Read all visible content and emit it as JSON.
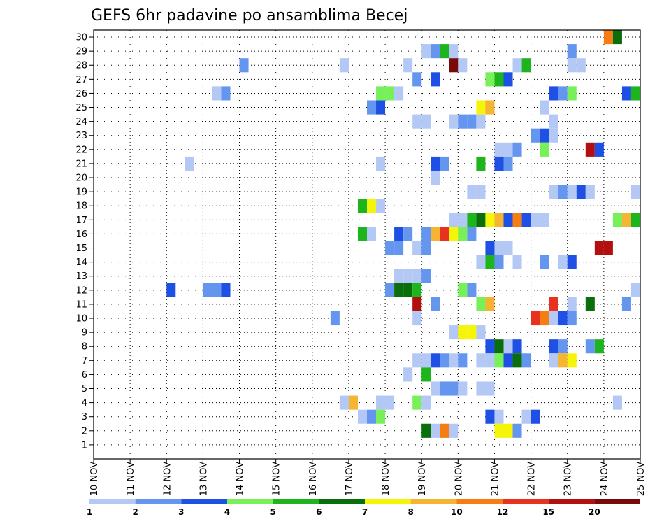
{
  "chart_data": {
    "type": "heatmap",
    "title": "GEFS 6hr padavine po ansamblima Becej",
    "x_ticks": [
      "10 NOV",
      "11 NOV",
      "12 NOV",
      "13 NOV",
      "14 NOV",
      "15 NOV",
      "16 NOV",
      "17 NOV",
      "18 NOV",
      "19 NOV",
      "20 NOV",
      "21 NOV",
      "22 NOV",
      "23 NOV",
      "24 NOV",
      "25 NOV"
    ],
    "y_ticks": [
      1,
      2,
      3,
      4,
      5,
      6,
      7,
      8,
      9,
      10,
      11,
      12,
      13,
      14,
      15,
      16,
      17,
      18,
      19,
      20,
      21,
      22,
      23,
      24,
      25,
      26,
      27,
      28,
      29,
      30
    ],
    "xlim": [
      "10 NOV 00Z",
      "25 NOV 00Z"
    ],
    "ylim": [
      0.5,
      30.5
    ],
    "grid": true,
    "legend": {
      "position": "bottom",
      "labels": [
        "1",
        "2",
        "3",
        "4",
        "5",
        "6",
        "7",
        "8",
        "10",
        "12",
        "15",
        "20"
      ],
      "colors": [
        "#b4c8f5",
        "#6496f0",
        "#1e50e6",
        "#78f05a",
        "#1eb41e",
        "#0a6e0a",
        "#f5f50a",
        "#f5b432",
        "#f57d14",
        "#e6321e",
        "#b40f0f",
        "#780a0a"
      ]
    },
    "cell_value_unit": "mm per 6h (color class index 0-11)",
    "cells": [
      {
        "member": 30,
        "start": "24 NOV 00Z",
        "classes": [
          8,
          5
        ]
      },
      {
        "member": 29,
        "start": "19 NOV 00Z",
        "classes": [
          0,
          1,
          4,
          0
        ]
      },
      {
        "member": 29,
        "start": "23 NOV 00Z",
        "classes": [
          1
        ]
      },
      {
        "member": 28,
        "start": "14 NOV 00Z",
        "classes": [
          1
        ]
      },
      {
        "member": 28,
        "start": "16 NOV 18Z",
        "classes": [
          0
        ]
      },
      {
        "member": 28,
        "start": "18 NOV 12Z",
        "classes": [
          0
        ]
      },
      {
        "member": 28,
        "start": "19 NOV 18Z",
        "classes": [
          11,
          0
        ]
      },
      {
        "member": 28,
        "start": "21 NOV 12Z",
        "classes": [
          0,
          4
        ]
      },
      {
        "member": 28,
        "start": "23 NOV 00Z",
        "classes": [
          0,
          0
        ]
      },
      {
        "member": 27,
        "start": "18 NOV 18Z",
        "classes": [
          1
        ]
      },
      {
        "member": 27,
        "start": "19 NOV 06Z",
        "classes": [
          2
        ]
      },
      {
        "member": 27,
        "start": "20 NOV 18Z",
        "classes": [
          3,
          4,
          2
        ]
      },
      {
        "member": 26,
        "start": "13 NOV 06Z",
        "classes": [
          0,
          1
        ]
      },
      {
        "member": 26,
        "start": "17 NOV 18Z",
        "classes": [
          3,
          3,
          0
        ]
      },
      {
        "member": 26,
        "start": "22 NOV 12Z",
        "classes": [
          2,
          1,
          3
        ]
      },
      {
        "member": 26,
        "start": "24 NOV 12Z",
        "classes": [
          2,
          4
        ]
      },
      {
        "member": 25,
        "start": "17 NOV 12Z",
        "classes": [
          1,
          2
        ]
      },
      {
        "member": 25,
        "start": "20 NOV 12Z",
        "classes": [
          6,
          7
        ]
      },
      {
        "member": 25,
        "start": "22 NOV 06Z",
        "classes": [
          0
        ]
      },
      {
        "member": 24,
        "start": "18 NOV 18Z",
        "classes": [
          0,
          0
        ]
      },
      {
        "member": 24,
        "start": "19 NOV 18Z",
        "classes": [
          0,
          1,
          1,
          0
        ]
      },
      {
        "member": 24,
        "start": "22 NOV 12Z",
        "classes": [
          0
        ]
      },
      {
        "member": 23,
        "start": "22 NOV 00Z",
        "classes": [
          1,
          2
        ]
      },
      {
        "member": 23,
        "start": "22 NOV 12Z",
        "classes": [
          0
        ]
      },
      {
        "member": 22,
        "start": "21 NOV 00Z",
        "classes": [
          0,
          0,
          1
        ]
      },
      {
        "member": 22,
        "start": "22 NOV 06Z",
        "classes": [
          3
        ]
      },
      {
        "member": 22,
        "start": "23 NOV 12Z",
        "classes": [
          10,
          2
        ]
      },
      {
        "member": 21,
        "start": "12 NOV 12Z",
        "classes": [
          0
        ]
      },
      {
        "member": 21,
        "start": "17 NOV 18Z",
        "classes": [
          0
        ]
      },
      {
        "member": 21,
        "start": "19 NOV 06Z",
        "classes": [
          2,
          1
        ]
      },
      {
        "member": 21,
        "start": "20 NOV 12Z",
        "classes": [
          4
        ]
      },
      {
        "member": 21,
        "start": "21 NOV 00Z",
        "classes": [
          2,
          1
        ]
      },
      {
        "member": 20,
        "start": "19 NOV 06Z",
        "classes": [
          0
        ]
      },
      {
        "member": 19,
        "start": "20 NOV 06Z",
        "classes": [
          0,
          0
        ]
      },
      {
        "member": 19,
        "start": "22 NOV 12Z",
        "classes": [
          0,
          1,
          0,
          2,
          0
        ]
      },
      {
        "member": 19,
        "start": "24 NOV 18Z",
        "classes": [
          0
        ]
      },
      {
        "member": 18,
        "start": "17 NOV 06Z",
        "classes": [
          4,
          6,
          0
        ]
      },
      {
        "member": 17,
        "start": "19 NOV 18Z",
        "classes": [
          0,
          0,
          4,
          5,
          6,
          7,
          2,
          8,
          2,
          0,
          0
        ]
      },
      {
        "member": 17,
        "start": "24 NOV 06Z",
        "classes": [
          3,
          7,
          4
        ]
      },
      {
        "member": 16,
        "start": "17 NOV 06Z",
        "classes": [
          4,
          0
        ]
      },
      {
        "member": 16,
        "start": "18 NOV 06Z",
        "classes": [
          2,
          1
        ]
      },
      {
        "member": 16,
        "start": "19 NOV 00Z",
        "classes": [
          1,
          7,
          9,
          6,
          3,
          1
        ]
      },
      {
        "member": 15,
        "start": "18 NOV 00Z",
        "classes": [
          1,
          1
        ]
      },
      {
        "member": 15,
        "start": "18 NOV 18Z",
        "classes": [
          0,
          1
        ]
      },
      {
        "member": 15,
        "start": "20 NOV 18Z",
        "classes": [
          2,
          0,
          0
        ]
      },
      {
        "member": 15,
        "start": "23 NOV 18Z",
        "classes": [
          10,
          10
        ]
      },
      {
        "member": 14,
        "start": "20 NOV 12Z",
        "classes": [
          0,
          4,
          1
        ]
      },
      {
        "member": 14,
        "start": "21 NOV 12Z",
        "classes": [
          0
        ]
      },
      {
        "member": 14,
        "start": "22 NOV 06Z",
        "classes": [
          1
        ]
      },
      {
        "member": 14,
        "start": "22 NOV 18Z",
        "classes": [
          0,
          2
        ]
      },
      {
        "member": 13,
        "start": "18 NOV 06Z",
        "classes": [
          0,
          0,
          0,
          1
        ]
      },
      {
        "member": 12,
        "start": "12 NOV 00Z",
        "classes": [
          2
        ]
      },
      {
        "member": 12,
        "start": "13 NOV 00Z",
        "classes": [
          1,
          1,
          2
        ]
      },
      {
        "member": 12,
        "start": "18 NOV 00Z",
        "classes": [
          1,
          5,
          5,
          4
        ]
      },
      {
        "member": 12,
        "start": "20 NOV 00Z",
        "classes": [
          3,
          1
        ]
      },
      {
        "member": 12,
        "start": "24 NOV 18Z",
        "classes": [
          0
        ]
      },
      {
        "member": 11,
        "start": "18 NOV 18Z",
        "classes": [
          10
        ]
      },
      {
        "member": 11,
        "start": "19 NOV 06Z",
        "classes": [
          1
        ]
      },
      {
        "member": 11,
        "start": "20 NOV 12Z",
        "classes": [
          3,
          7
        ]
      },
      {
        "member": 11,
        "start": "22 NOV 12Z",
        "classes": [
          9
        ]
      },
      {
        "member": 11,
        "start": "23 NOV 00Z",
        "classes": [
          0
        ]
      },
      {
        "member": 11,
        "start": "23 NOV 12Z",
        "classes": [
          5
        ]
      },
      {
        "member": 11,
        "start": "24 NOV 12Z",
        "classes": [
          1
        ]
      },
      {
        "member": 10,
        "start": "16 NOV 12Z",
        "classes": [
          1
        ]
      },
      {
        "member": 10,
        "start": "18 NOV 18Z",
        "classes": [
          0
        ]
      },
      {
        "member": 10,
        "start": "22 NOV 00Z",
        "classes": [
          9,
          8,
          0,
          2,
          1
        ]
      },
      {
        "member": 9,
        "start": "19 NOV 18Z",
        "classes": [
          0,
          6,
          6,
          0
        ]
      },
      {
        "member": 8,
        "start": "20 NOV 18Z",
        "classes": [
          2,
          5,
          0,
          2
        ]
      },
      {
        "member": 8,
        "start": "22 NOV 12Z",
        "classes": [
          2,
          1
        ]
      },
      {
        "member": 8,
        "start": "23 NOV 12Z",
        "classes": [
          1,
          4
        ]
      },
      {
        "member": 7,
        "start": "18 NOV 18Z",
        "classes": [
          0,
          0,
          2,
          1,
          0,
          1
        ]
      },
      {
        "member": 7,
        "start": "20 NOV 12Z",
        "classes": [
          0,
          0,
          3,
          2,
          5,
          1
        ]
      },
      {
        "member": 7,
        "start": "22 NOV 12Z",
        "classes": [
          0,
          7,
          6
        ]
      },
      {
        "member": 6,
        "start": "18 NOV 12Z",
        "classes": [
          0
        ]
      },
      {
        "member": 6,
        "start": "19 NOV 00Z",
        "classes": [
          4
        ]
      },
      {
        "member": 5,
        "start": "19 NOV 06Z",
        "classes": [
          0,
          1,
          1,
          0
        ]
      },
      {
        "member": 5,
        "start": "20 NOV 12Z",
        "classes": [
          0,
          0
        ]
      },
      {
        "member": 4,
        "start": "16 NOV 18Z",
        "classes": [
          0,
          7
        ]
      },
      {
        "member": 4,
        "start": "17 NOV 18Z",
        "classes": [
          0,
          0
        ]
      },
      {
        "member": 4,
        "start": "18 NOV 18Z",
        "classes": [
          3,
          0
        ]
      },
      {
        "member": 4,
        "start": "24 NOV 06Z",
        "classes": [
          0
        ]
      },
      {
        "member": 3,
        "start": "17 NOV 06Z",
        "classes": [
          0,
          1,
          3
        ]
      },
      {
        "member": 3,
        "start": "20 NOV 18Z",
        "classes": [
          2,
          0
        ]
      },
      {
        "member": 3,
        "start": "21 NOV 18Z",
        "classes": [
          0,
          2
        ]
      },
      {
        "member": 2,
        "start": "19 NOV 00Z",
        "classes": [
          5,
          0,
          8,
          0
        ]
      },
      {
        "member": 2,
        "start": "21 NOV 00Z",
        "classes": [
          6,
          6,
          1
        ]
      }
    ]
  }
}
